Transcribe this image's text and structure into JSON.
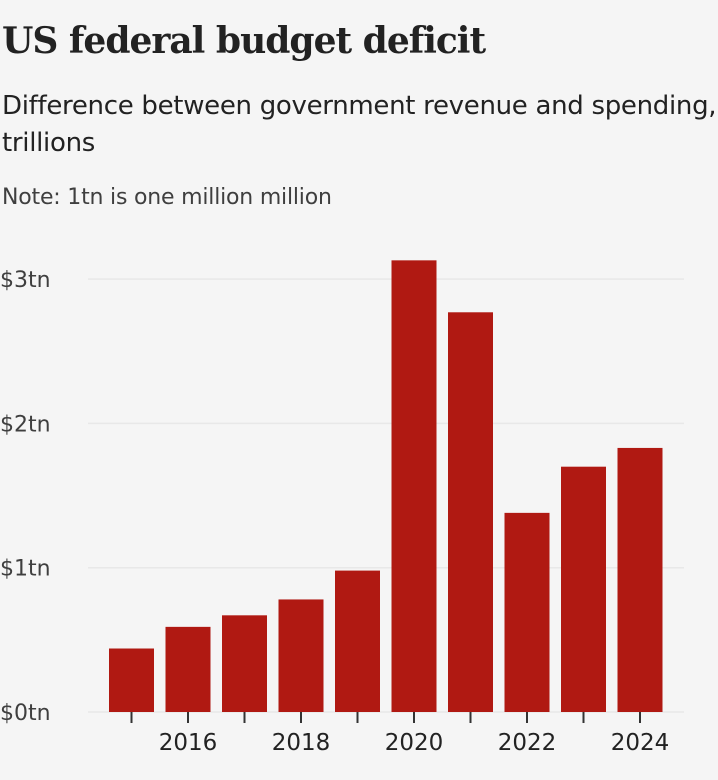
{
  "header": {
    "title": "US federal budget deficit",
    "subtitle": "Difference between government revenue and spending, trillions",
    "note": "Note: 1tn is one million million"
  },
  "colors": {
    "bar": "#b01912",
    "background": "#f5f5f5",
    "gridline": "#e8e8e8",
    "text": "#222222"
  },
  "chart_data": {
    "type": "bar",
    "title": "US federal budget deficit",
    "subtitle": "Difference between government revenue and spending, trillions",
    "note": "Note: 1tn is one million million",
    "xlabel": "",
    "ylabel": "",
    "categories": [
      "2015",
      "2016",
      "2017",
      "2018",
      "2019",
      "2020",
      "2021",
      "2022",
      "2023",
      "2024"
    ],
    "values": [
      0.44,
      0.59,
      0.67,
      0.78,
      0.98,
      3.13,
      2.77,
      1.38,
      1.7,
      1.83
    ],
    "unit": "trillion USD",
    "ylim": [
      0,
      3
    ],
    "yticks": [
      0,
      1,
      2,
      3
    ],
    "ytick_labels": [
      "$0tn",
      "$1tn",
      "$2tn",
      "$3tn"
    ],
    "xtick_labels_shown": [
      "2016",
      "2018",
      "2020",
      "2022",
      "2024"
    ],
    "grid": true,
    "legend": "none"
  }
}
